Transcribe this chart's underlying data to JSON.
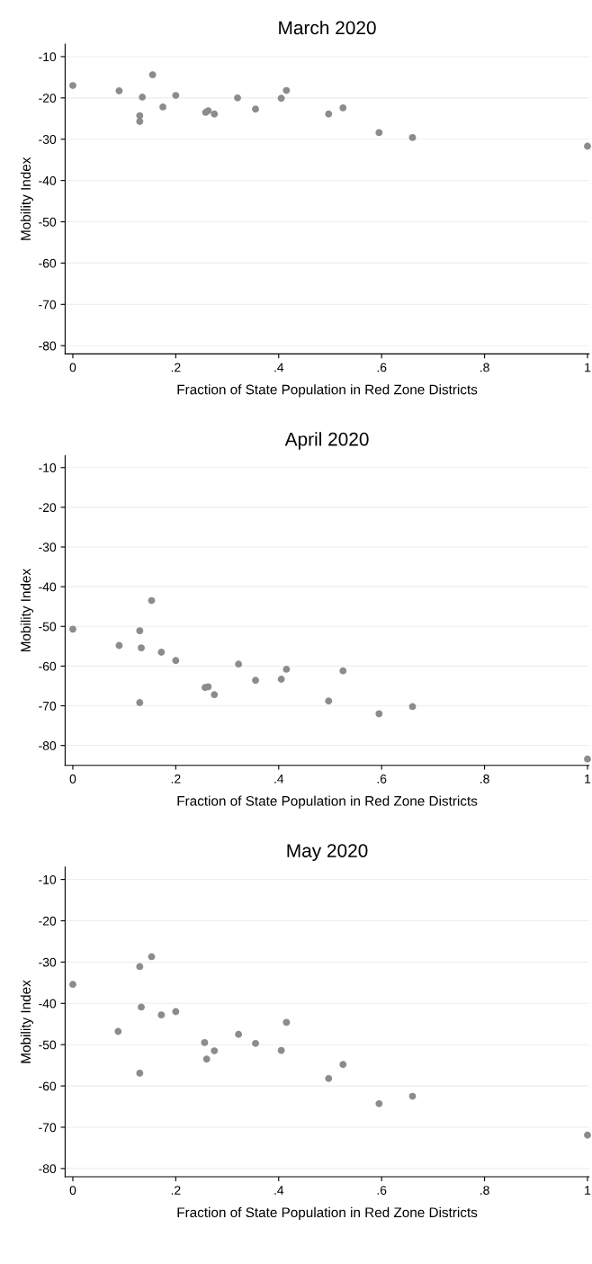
{
  "chart_data": [
    {
      "type": "scatter",
      "title": "March 2020",
      "xlabel": "Fraction of State Population in Red Zone Districts",
      "ylabel": "Mobility Index",
      "marker": "circle",
      "grid": "y",
      "legend": false,
      "xlim": [
        -0.015,
        1.003
      ],
      "xticks": [
        0,
        {
          "value": 0.2,
          "label": ".2"
        },
        {
          "value": 0.4,
          "label": ".4"
        },
        {
          "value": 0.6,
          "label": ".6"
        },
        {
          "value": 0.8,
          "label": ".8"
        },
        1
      ],
      "ylim": [
        -82,
        -7
      ],
      "yticks": [
        -80,
        -70,
        -60,
        -50,
        -40,
        -30,
        -20,
        -10
      ],
      "series": [
        {
          "color": "#8c8c8c",
          "x": [
            0,
            0.09,
            0.13,
            0.13,
            0.135,
            0.155,
            0.175,
            0.2,
            0.258,
            0.263,
            0.275,
            0.32,
            0.355,
            0.405,
            0.415,
            0.497,
            0.525,
            0.595,
            0.66,
            1
          ],
          "values": [
            -17,
            -18.3,
            -24.3,
            -25.7,
            -19.8,
            -14.4,
            -22.2,
            -19.4,
            -23.5,
            -23.1,
            -23.9,
            -20,
            -22.7,
            -20.1,
            -18.2,
            -23.9,
            -22.4,
            -28.4,
            -29.6,
            -31.7
          ]
        }
      ]
    },
    {
      "type": "scatter",
      "title": "April 2020",
      "xlabel": "Fraction of State Population in Red Zone Districts",
      "ylabel": "Mobility Index",
      "marker": "circle",
      "grid": "y",
      "legend": false,
      "xlim": [
        -0.015,
        1.003
      ],
      "xticks": [
        0,
        {
          "value": 0.2,
          "label": ".2"
        },
        {
          "value": 0.4,
          "label": ".4"
        },
        {
          "value": 0.6,
          "label": ".6"
        },
        {
          "value": 0.8,
          "label": ".8"
        },
        1
      ],
      "ylim": [
        -85,
        -7
      ],
      "yticks": [
        -80,
        -70,
        -60,
        -50,
        -40,
        -30,
        -20,
        -10
      ],
      "series": [
        {
          "color": "#8c8c8c",
          "x": [
            0,
            0.09,
            0.13,
            0.133,
            0.13,
            0.153,
            0.172,
            0.2,
            0.257,
            0.263,
            0.275,
            0.322,
            0.355,
            0.405,
            0.415,
            0.497,
            0.525,
            0.595,
            0.66,
            1
          ],
          "values": [
            -50.7,
            -54.8,
            -51.1,
            -55.4,
            -69.2,
            -43.5,
            -56.5,
            -58.6,
            -65.4,
            -65.2,
            -67.2,
            -59.5,
            -63.6,
            -63.3,
            -60.8,
            -68.8,
            -61.2,
            -72,
            -70.2,
            -83.4
          ]
        }
      ]
    },
    {
      "type": "scatter",
      "title": "May 2020",
      "xlabel": "Fraction of State Population in Red Zone Districts",
      "ylabel": "Mobility Index",
      "marker": "circle",
      "grid": "y",
      "legend": false,
      "xlim": [
        -0.015,
        1.003
      ],
      "xticks": [
        0,
        {
          "value": 0.2,
          "label": ".2"
        },
        {
          "value": 0.4,
          "label": ".4"
        },
        {
          "value": 0.6,
          "label": ".6"
        },
        {
          "value": 0.8,
          "label": ".8"
        },
        1
      ],
      "ylim": [
        -82,
        -7
      ],
      "yticks": [
        -80,
        -70,
        -60,
        -50,
        -40,
        -30,
        -20,
        -10
      ],
      "series": [
        {
          "color": "#8c8c8c",
          "x": [
            0,
            0.088,
            0.13,
            0.133,
            0.13,
            0.153,
            0.172,
            0.2,
            0.256,
            0.26,
            0.275,
            0.322,
            0.355,
            0.405,
            0.415,
            0.497,
            0.525,
            0.595,
            0.66,
            1
          ],
          "values": [
            -35.4,
            -46.8,
            -31.1,
            -40.9,
            -56.9,
            -28.7,
            -42.8,
            -42,
            -49.5,
            -53.5,
            -51.5,
            -47.5,
            -49.7,
            -51.4,
            -44.6,
            -58.2,
            -54.8,
            -64.3,
            -62.5,
            -71.9
          ]
        }
      ]
    }
  ]
}
